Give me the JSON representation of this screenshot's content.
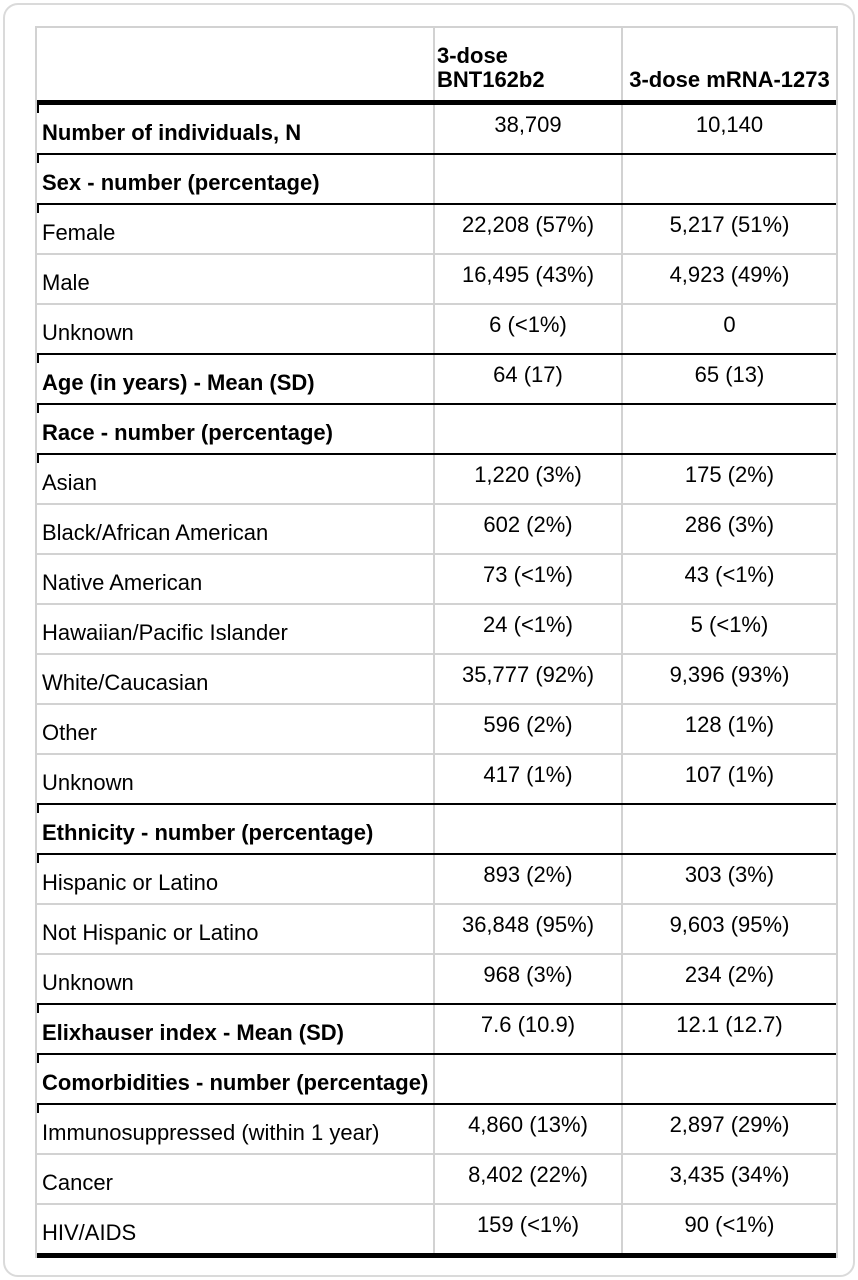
{
  "colors": {
    "heavy_rule": "#000000",
    "section_rule": "#000000",
    "thin_rule": "#d2d2d2",
    "card_border": "#dadada",
    "text": "#000000",
    "background": "#ffffff"
  },
  "table": {
    "column_headers": [
      "3-dose BNT162b2",
      "3-dose mRNA-1273"
    ],
    "rows": [
      {
        "label": "Number of individuals, N",
        "bold": true,
        "values": [
          "38,709",
          "10,140"
        ],
        "divider": "section"
      },
      {
        "label": "Sex - number (percentage)",
        "bold": true,
        "values": [
          "",
          ""
        ],
        "divider": "section"
      },
      {
        "label": "Female",
        "bold": false,
        "values": [
          "22,208 (57%)",
          "5,217 (51%)"
        ],
        "divider": "thin"
      },
      {
        "label": "Male",
        "bold": false,
        "values": [
          "16,495 (43%)",
          "4,923 (49%)"
        ],
        "divider": "thin"
      },
      {
        "label": "Unknown",
        "bold": false,
        "values": [
          "6 (<1%)",
          "0"
        ],
        "divider": "section"
      },
      {
        "label": "Age (in years) - Mean (SD)",
        "bold": true,
        "values": [
          "64 (17)",
          "65 (13)"
        ],
        "divider": "section"
      },
      {
        "label": "Race - number (percentage)",
        "bold": true,
        "values": [
          "",
          ""
        ],
        "divider": "section"
      },
      {
        "label": "Asian",
        "bold": false,
        "values": [
          "1,220 (3%)",
          "175 (2%)"
        ],
        "divider": "thin"
      },
      {
        "label": "Black/African American",
        "bold": false,
        "values": [
          "602 (2%)",
          "286 (3%)"
        ],
        "divider": "thin"
      },
      {
        "label": "Native American",
        "bold": false,
        "values": [
          "73 (<1%)",
          "43 (<1%)"
        ],
        "divider": "thin"
      },
      {
        "label": "Hawaiian/Pacific Islander",
        "bold": false,
        "values": [
          "24 (<1%)",
          "5 (<1%)"
        ],
        "divider": "thin"
      },
      {
        "label": "White/Caucasian",
        "bold": false,
        "values": [
          "35,777 (92%)",
          "9,396 (93%)"
        ],
        "divider": "thin"
      },
      {
        "label": "Other",
        "bold": false,
        "values": [
          "596 (2%)",
          "128 (1%)"
        ],
        "divider": "thin"
      },
      {
        "label": "Unknown",
        "bold": false,
        "values": [
          "417 (1%)",
          "107 (1%)"
        ],
        "divider": "section"
      },
      {
        "label": "Ethnicity - number (percentage)",
        "bold": true,
        "values": [
          "",
          ""
        ],
        "divider": "section"
      },
      {
        "label": "Hispanic or Latino",
        "bold": false,
        "values": [
          "893 (2%)",
          "303 (3%)"
        ],
        "divider": "thin"
      },
      {
        "label": "Not Hispanic or Latino",
        "bold": false,
        "values": [
          "36,848 (95%)",
          "9,603 (95%)"
        ],
        "divider": "thin"
      },
      {
        "label": "Unknown",
        "bold": false,
        "values": [
          "968 (3%)",
          "234 (2%)"
        ],
        "divider": "section"
      },
      {
        "label": "Elixhauser index - Mean (SD)",
        "bold": true,
        "values": [
          "7.6 (10.9)",
          "12.1 (12.7)"
        ],
        "divider": "section"
      },
      {
        "label": "Comorbidities - number (percentage)",
        "bold": true,
        "values": [
          "",
          ""
        ],
        "divider": "section"
      },
      {
        "label": "Immunosuppressed (within 1 year)",
        "bold": false,
        "values": [
          "4,860 (13%)",
          "2,897 (29%)"
        ],
        "divider": "thin"
      },
      {
        "label": "Cancer",
        "bold": false,
        "values": [
          "8,402 (22%)",
          "3,435 (34%)"
        ],
        "divider": "thin"
      },
      {
        "label": "HIV/AIDS",
        "bold": false,
        "values": [
          "159 (<1%)",
          "90 (<1%)"
        ],
        "divider": "heavy"
      }
    ]
  }
}
